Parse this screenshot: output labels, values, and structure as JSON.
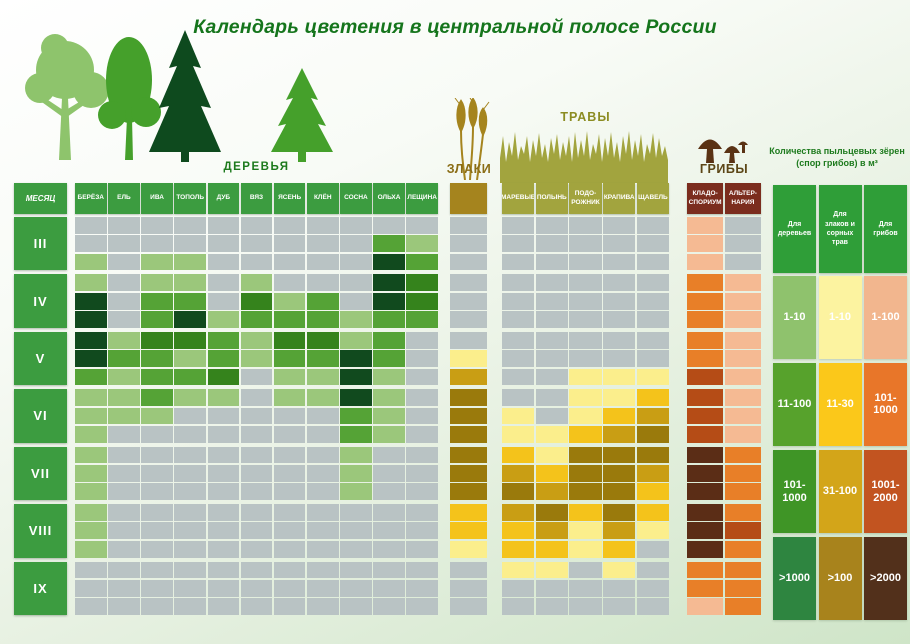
{
  "chart_data": {
    "type": "heatmap",
    "title": "Календарь цветения в центральной полосе России",
    "month_header": "МЕСЯЦ",
    "months": [
      "III",
      "IV",
      "V",
      "VI",
      "VII",
      "VIII",
      "IX"
    ],
    "sub_rows_per_month": 3,
    "grid_off_color": "#B9C3C4",
    "header_green": "#3C9C40",
    "groups": [
      {
        "id": "trees",
        "label": "ДЕРЕВЬЯ",
        "icon": "trees-icon",
        "header_color": "#3C9C40",
        "columns": [
          "БЕРЁЗА",
          "ЕЛЬ",
          "ИВА",
          "ТОПОЛЬ",
          "ДУБ",
          "ВЯЗ",
          "ЯСЕНЬ",
          "КЛЁН",
          "СОСНА",
          "ОЛЬХА",
          "ЛЕЩИНА"
        ],
        "levels": [
          "0",
          "1-10",
          "11-100",
          "101-1000",
          ">1000"
        ],
        "palette": [
          "#B9C3C4",
          "#9BC77B",
          "#55A336",
          "#35831C",
          "#114A1E"
        ],
        "matrix": [
          [
            0,
            0,
            0,
            0,
            0,
            0,
            0,
            0,
            0,
            0,
            0
          ],
          [
            0,
            0,
            0,
            0,
            0,
            0,
            0,
            0,
            0,
            2,
            1
          ],
          [
            1,
            0,
            1,
            1,
            0,
            0,
            0,
            0,
            0,
            4,
            2
          ],
          [
            1,
            0,
            1,
            1,
            0,
            1,
            0,
            0,
            0,
            4,
            3
          ],
          [
            4,
            0,
            2,
            2,
            0,
            3,
            1,
            2,
            0,
            4,
            3
          ],
          [
            4,
            0,
            2,
            4,
            1,
            2,
            2,
            2,
            1,
            2,
            2
          ],
          [
            4,
            1,
            3,
            3,
            2,
            1,
            3,
            3,
            1,
            2,
            0
          ],
          [
            4,
            2,
            2,
            1,
            2,
            1,
            2,
            2,
            4,
            2,
            0
          ],
          [
            2,
            1,
            2,
            2,
            3,
            0,
            1,
            1,
            4,
            1,
            0
          ],
          [
            1,
            1,
            2,
            1,
            1,
            0,
            1,
            1,
            4,
            1,
            0
          ],
          [
            1,
            1,
            1,
            0,
            0,
            0,
            0,
            0,
            2,
            1,
            0
          ],
          [
            1,
            0,
            0,
            0,
            0,
            0,
            0,
            0,
            2,
            1,
            0
          ],
          [
            1,
            0,
            0,
            0,
            0,
            0,
            0,
            0,
            1,
            0,
            0
          ],
          [
            1,
            0,
            0,
            0,
            0,
            0,
            0,
            0,
            1,
            0,
            0
          ],
          [
            1,
            0,
            0,
            0,
            0,
            0,
            0,
            0,
            1,
            0,
            0
          ],
          [
            1,
            0,
            0,
            0,
            0,
            0,
            0,
            0,
            0,
            0,
            0
          ],
          [
            1,
            0,
            0,
            0,
            0,
            0,
            0,
            0,
            0,
            0,
            0
          ],
          [
            1,
            0,
            0,
            0,
            0,
            0,
            0,
            0,
            0,
            0,
            0
          ],
          [
            0,
            0,
            0,
            0,
            0,
            0,
            0,
            0,
            0,
            0,
            0
          ],
          [
            0,
            0,
            0,
            0,
            0,
            0,
            0,
            0,
            0,
            0,
            0
          ],
          [
            0,
            0,
            0,
            0,
            0,
            0,
            0,
            0,
            0,
            0,
            0
          ]
        ]
      },
      {
        "id": "grains",
        "label": "ЗЛАКИ",
        "icon": "wheat-icon",
        "header_color": "#A5841E",
        "columns": [
          ""
        ],
        "levels": [
          "0",
          "1-10",
          "11-30",
          "31-100",
          ">100"
        ],
        "palette": [
          "#B9C3C4",
          "#FBEE8C",
          "#F4C31B",
          "#C99E14",
          "#9A7A0C"
        ],
        "matrix": [
          [
            0
          ],
          [
            0
          ],
          [
            0
          ],
          [
            0
          ],
          [
            0
          ],
          [
            0
          ],
          [
            0
          ],
          [
            1
          ],
          [
            3
          ],
          [
            4
          ],
          [
            4
          ],
          [
            4
          ],
          [
            4
          ],
          [
            4
          ],
          [
            4
          ],
          [
            2
          ],
          [
            2
          ],
          [
            1
          ],
          [
            0
          ],
          [
            0
          ],
          [
            0
          ]
        ]
      },
      {
        "id": "herbs",
        "label": "ТРАВЫ",
        "icon": "grass-icon",
        "header_color": "#A2A43E",
        "columns": [
          "МАРЕВЫЕ",
          "ПОЛЫНЬ",
          "ПОДО-РОЖНИК",
          "КРАПИВА",
          "ЩАВЕЛЬ"
        ],
        "levels": [
          "0",
          "1-10",
          "11-30",
          "31-100",
          ">100"
        ],
        "palette": [
          "#B9C3C4",
          "#FBEE8C",
          "#F4C31B",
          "#C99E14",
          "#9A7A0C"
        ],
        "matrix": [
          [
            0,
            0,
            0,
            0,
            0
          ],
          [
            0,
            0,
            0,
            0,
            0
          ],
          [
            0,
            0,
            0,
            0,
            0
          ],
          [
            0,
            0,
            0,
            0,
            0
          ],
          [
            0,
            0,
            0,
            0,
            0
          ],
          [
            0,
            0,
            0,
            0,
            0
          ],
          [
            0,
            0,
            0,
            0,
            0
          ],
          [
            0,
            0,
            0,
            0,
            0
          ],
          [
            0,
            0,
            1,
            1,
            1
          ],
          [
            0,
            0,
            1,
            1,
            2
          ],
          [
            1,
            0,
            1,
            2,
            3
          ],
          [
            1,
            1,
            2,
            3,
            4
          ],
          [
            2,
            1,
            4,
            4,
            4
          ],
          [
            3,
            2,
            4,
            4,
            3
          ],
          [
            4,
            3,
            4,
            4,
            2
          ],
          [
            3,
            4,
            2,
            4,
            2
          ],
          [
            2,
            3,
            1,
            3,
            1
          ],
          [
            2,
            2,
            1,
            2,
            0
          ],
          [
            1,
            1,
            0,
            1,
            0
          ],
          [
            0,
            0,
            0,
            0,
            0
          ],
          [
            0,
            0,
            0,
            0,
            0
          ]
        ]
      },
      {
        "id": "fungi",
        "label": "ГРИБЫ",
        "icon": "mushrooms-icon",
        "header_color": "#7B2D1E",
        "columns": [
          "КЛАДО-СПОРИУМ",
          "АЛЬТЕР-НАРИЯ"
        ],
        "levels": [
          "0",
          "1-100",
          "101-1000",
          "1001-2000",
          ">2000"
        ],
        "palette": [
          "#B9C3C4",
          "#F5BA93",
          "#E87F28",
          "#B54C16",
          "#5B2D16"
        ],
        "matrix": [
          [
            1,
            0
          ],
          [
            1,
            0
          ],
          [
            1,
            0
          ],
          [
            2,
            1
          ],
          [
            2,
            1
          ],
          [
            2,
            1
          ],
          [
            2,
            1
          ],
          [
            2,
            1
          ],
          [
            3,
            1
          ],
          [
            3,
            1
          ],
          [
            3,
            1
          ],
          [
            3,
            1
          ],
          [
            4,
            2
          ],
          [
            4,
            2
          ],
          [
            4,
            2
          ],
          [
            4,
            2
          ],
          [
            4,
            3
          ],
          [
            4,
            2
          ],
          [
            2,
            2
          ],
          [
            2,
            2
          ],
          [
            1,
            2
          ]
        ]
      }
    ],
    "legend": {
      "title": "Количества пыльцевых зёрен (спор грибов) в м³",
      "header_color": "#2F9E38",
      "columns": [
        {
          "header": "Для деревьев",
          "values": [
            "1-10",
            "11-100",
            "101-1000",
            ">1000"
          ],
          "colors": [
            "#8FC26D",
            "#57A22C",
            "#3F9526",
            "#2E8540"
          ]
        },
        {
          "header": "Для злаков и сорных трав",
          "values": [
            "1-10",
            "11-30",
            "31-100",
            ">100"
          ],
          "colors": [
            "#FCF3A0",
            "#FBC81A",
            "#D3A519",
            "#A8831C"
          ]
        },
        {
          "header": "Для грибов",
          "values": [
            "1-100",
            "101-1000",
            "1001-2000",
            ">2000"
          ],
          "colors": [
            "#F2B68E",
            "#E87629",
            "#C25420",
            "#52301B"
          ]
        }
      ]
    },
    "icon_colors": {
      "tree_light": "#8EC46C",
      "tree_mid": "#45A02B",
      "tree_dark": "#0E4A1E",
      "wheat": "#A5841E",
      "grass": "#A2A43E",
      "mushrooms": "#5A3214"
    }
  }
}
